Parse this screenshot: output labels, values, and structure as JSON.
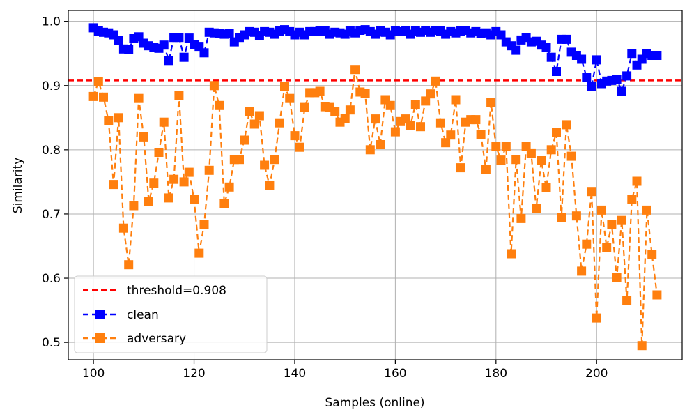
{
  "chart_data": {
    "type": "line",
    "title": "",
    "xlabel": "Samples (online)",
    "ylabel": "Similarity",
    "xlim": [
      95,
      217
    ],
    "ylim": [
      0.473,
      1.017
    ],
    "xticks": [
      100,
      120,
      140,
      160,
      180,
      200
    ],
    "xtick_labels": [
      "100",
      "120",
      "140",
      "160",
      "180",
      "200"
    ],
    "yticks": [
      0.5,
      0.6,
      0.7,
      0.8,
      0.9,
      1.0
    ],
    "ytick_labels": [
      "0.5",
      "0.6",
      "0.7",
      "0.8",
      "0.9",
      "1.0"
    ],
    "grid": true,
    "legend_position": "lower-left",
    "threshold": {
      "name": "threshold=0.908",
      "value": 0.908,
      "color": "#ff0000",
      "style": "dashed"
    },
    "x": [
      100,
      101,
      102,
      103,
      104,
      105,
      106,
      107,
      108,
      109,
      110,
      111,
      112,
      113,
      114,
      115,
      116,
      117,
      118,
      119,
      120,
      121,
      122,
      123,
      124,
      125,
      126,
      127,
      128,
      129,
      130,
      131,
      132,
      133,
      134,
      135,
      136,
      137,
      138,
      139,
      140,
      141,
      142,
      143,
      144,
      145,
      146,
      147,
      148,
      149,
      150,
      151,
      152,
      153,
      154,
      155,
      156,
      157,
      158,
      159,
      160,
      161,
      162,
      163,
      164,
      165,
      166,
      167,
      168,
      169,
      170,
      171,
      172,
      173,
      174,
      175,
      176,
      177,
      178,
      179,
      180,
      181,
      182,
      183,
      184,
      185,
      186,
      187,
      188,
      189,
      190,
      191,
      192,
      193,
      194,
      195,
      196,
      197,
      198,
      199,
      200,
      201,
      202,
      203,
      204,
      205,
      206,
      207,
      208,
      209,
      210,
      211,
      212
    ],
    "series": [
      {
        "name": "clean",
        "color": "#0000ff",
        "marker": "square",
        "linestyle": "dashed",
        "values": [
          0.99,
          0.985,
          0.983,
          0.982,
          0.979,
          0.97,
          0.957,
          0.956,
          0.973,
          0.976,
          0.966,
          0.962,
          0.96,
          0.958,
          0.963,
          0.939,
          0.975,
          0.975,
          0.944,
          0.974,
          0.964,
          0.961,
          0.951,
          0.983,
          0.982,
          0.981,
          0.98,
          0.981,
          0.968,
          0.975,
          0.979,
          0.984,
          0.983,
          0.978,
          0.984,
          0.983,
          0.98,
          0.985,
          0.987,
          0.984,
          0.979,
          0.983,
          0.979,
          0.984,
          0.984,
          0.985,
          0.985,
          0.98,
          0.983,
          0.982,
          0.98,
          0.985,
          0.982,
          0.986,
          0.987,
          0.984,
          0.98,
          0.985,
          0.983,
          0.979,
          0.985,
          0.984,
          0.985,
          0.98,
          0.985,
          0.983,
          0.986,
          0.983,
          0.986,
          0.985,
          0.98,
          0.984,
          0.982,
          0.985,
          0.986,
          0.982,
          0.984,
          0.981,
          0.982,
          0.979,
          0.984,
          0.979,
          0.968,
          0.962,
          0.955,
          0.971,
          0.975,
          0.968,
          0.969,
          0.963,
          0.959,
          0.944,
          0.922,
          0.972,
          0.972,
          0.952,
          0.947,
          0.941,
          0.913,
          0.899,
          0.94,
          0.903,
          0.907,
          0.908,
          0.91,
          0.891,
          0.915,
          0.95,
          0.932,
          0.941,
          0.95,
          0.947,
          0.947
        ]
      },
      {
        "name": "adversary",
        "color": "#ff7f0e",
        "marker": "square",
        "linestyle": "dashed",
        "values": [
          0.883,
          0.906,
          0.882,
          0.845,
          0.746,
          0.85,
          0.678,
          0.621,
          0.713,
          0.88,
          0.82,
          0.72,
          0.748,
          0.796,
          0.843,
          0.725,
          0.754,
          0.885,
          0.75,
          0.765,
          0.723,
          0.639,
          0.684,
          0.768,
          0.9,
          0.869,
          0.716,
          0.742,
          0.785,
          0.785,
          0.815,
          0.86,
          0.84,
          0.853,
          0.776,
          0.744,
          0.785,
          0.842,
          0.899,
          0.88,
          0.822,
          0.804,
          0.866,
          0.889,
          0.889,
          0.891,
          0.867,
          0.866,
          0.86,
          0.843,
          0.849,
          0.862,
          0.925,
          0.89,
          0.888,
          0.8,
          0.848,
          0.808,
          0.878,
          0.869,
          0.828,
          0.844,
          0.848,
          0.838,
          0.871,
          0.836,
          0.876,
          0.887,
          0.907,
          0.842,
          0.811,
          0.823,
          0.878,
          0.772,
          0.843,
          0.847,
          0.847,
          0.824,
          0.769,
          0.874,
          0.805,
          0.784,
          0.805,
          0.638,
          0.785,
          0.693,
          0.805,
          0.794,
          0.709,
          0.783,
          0.741,
          0.8,
          0.827,
          0.694,
          0.839,
          0.79,
          0.697,
          0.611,
          0.653,
          0.735,
          0.538,
          0.706,
          0.648,
          0.684,
          0.601,
          0.69,
          0.565,
          0.723,
          0.751,
          0.495,
          0.706,
          0.637,
          0.574
        ]
      }
    ]
  }
}
